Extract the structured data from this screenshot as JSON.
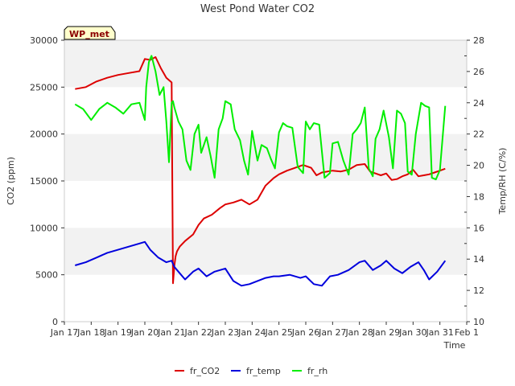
{
  "chart_data": {
    "type": "line",
    "title": "West Pond Water CO2",
    "xlabel": "Time",
    "ylabel": "CO2 (ppm)",
    "y2label": "Temp/RH (C/%)",
    "badge": "WP_met",
    "x_ticks": [
      "Jan 17",
      "Jan 18",
      "Jan 19",
      "Jan 20",
      "Jan 21",
      "Jan 22",
      "Jan 23",
      "Jan 24",
      "Jan 25",
      "Jan 26",
      "Jan 27",
      "Jan 28",
      "Jan 29",
      "Jan 30",
      "Jan 31",
      "Feb 1"
    ],
    "xlim": [
      17,
      32
    ],
    "ylim": [
      0,
      30000
    ],
    "y2lim": [
      10,
      28
    ],
    "y_ticks": [
      0,
      5000,
      10000,
      15000,
      20000,
      25000,
      30000
    ],
    "y2_ticks": [
      10,
      12,
      14,
      16,
      18,
      20,
      22,
      24,
      26,
      28
    ],
    "grid": "horizontal bands",
    "legend_position": "bottom-center",
    "series": [
      {
        "name": "fr_CO2",
        "axis": "left",
        "color": "#dd0000",
        "x": [
          17.4,
          17.8,
          18.2,
          18.6,
          19.0,
          19.4,
          19.8,
          20.0,
          20.2,
          20.4,
          20.6,
          20.8,
          21.0,
          21.05,
          21.1,
          21.15,
          21.2,
          21.3,
          21.5,
          21.8,
          22.0,
          22.2,
          22.5,
          22.8,
          23.0,
          23.3,
          23.6,
          23.9,
          24.2,
          24.5,
          24.8,
          25.0,
          25.3,
          25.6,
          25.9,
          26.2,
          26.4,
          26.6,
          27.0,
          27.3,
          27.6,
          27.9,
          28.2,
          28.4,
          28.6,
          28.8,
          29.0,
          29.2,
          29.4,
          29.6,
          29.8,
          30.0,
          30.2,
          30.4,
          30.6,
          30.8,
          31.0,
          31.2
        ],
        "values": [
          24800,
          25000,
          25600,
          26000,
          26300,
          26500,
          26700,
          28000,
          27900,
          28200,
          27000,
          26000,
          25500,
          4100,
          6000,
          7000,
          7500,
          8000,
          8600,
          9300,
          10300,
          11000,
          11400,
          12100,
          12500,
          12700,
          13000,
          12500,
          13000,
          14500,
          15300,
          15700,
          16100,
          16400,
          16700,
          16400,
          15600,
          15900,
          16100,
          16000,
          16200,
          16700,
          16800,
          16000,
          15800,
          15600,
          15800,
          15100,
          15200,
          15500,
          15700,
          16200,
          15500,
          15600,
          15700,
          15900,
          16100,
          16300
        ]
      },
      {
        "name": "fr_temp",
        "axis": "right",
        "color": "#0000dd",
        "x": [
          17.4,
          17.8,
          18.2,
          18.6,
          19.0,
          19.4,
          19.8,
          20.0,
          20.2,
          20.5,
          20.8,
          21.0,
          21.1,
          21.3,
          21.5,
          21.8,
          22.0,
          22.3,
          22.6,
          23.0,
          23.3,
          23.6,
          23.9,
          24.2,
          24.5,
          24.8,
          25.0,
          25.4,
          25.8,
          26.0,
          26.3,
          26.6,
          26.9,
          27.2,
          27.6,
          28.0,
          28.2,
          28.5,
          28.8,
          29.0,
          29.3,
          29.6,
          29.9,
          30.2,
          30.4,
          30.6,
          30.9,
          31.2
        ],
        "values": [
          13.6,
          13.8,
          14.1,
          14.4,
          14.6,
          14.8,
          15.0,
          15.1,
          14.6,
          14.1,
          13.8,
          13.9,
          13.5,
          13.1,
          12.7,
          13.2,
          13.4,
          12.9,
          13.2,
          13.4,
          12.6,
          12.3,
          12.4,
          12.6,
          12.8,
          12.9,
          12.9,
          13.0,
          12.8,
          12.9,
          12.4,
          12.3,
          12.9,
          13.0,
          13.3,
          13.8,
          13.9,
          13.3,
          13.6,
          13.9,
          13.4,
          13.1,
          13.5,
          13.8,
          13.3,
          12.7,
          13.2,
          13.9
        ]
      },
      {
        "name": "fr_rh",
        "axis": "right",
        "color": "#00ee00",
        "x": [
          17.4,
          17.7,
          18.0,
          18.3,
          18.6,
          18.9,
          19.2,
          19.5,
          19.8,
          20.0,
          20.05,
          20.15,
          20.25,
          20.4,
          20.55,
          20.7,
          20.8,
          20.9,
          21.0,
          21.05,
          21.1,
          21.25,
          21.4,
          21.55,
          21.7,
          21.85,
          22.0,
          22.1,
          22.3,
          22.45,
          22.6,
          22.75,
          22.9,
          23.0,
          23.2,
          23.35,
          23.55,
          23.7,
          23.85,
          24.0,
          24.2,
          24.35,
          24.55,
          24.7,
          24.85,
          25.0,
          25.15,
          25.3,
          25.5,
          25.7,
          25.9,
          26.0,
          26.15,
          26.3,
          26.5,
          26.7,
          26.9,
          27.0,
          27.2,
          27.4,
          27.6,
          27.75,
          27.9,
          28.05,
          28.2,
          28.35,
          28.5,
          28.6,
          28.75,
          28.9,
          29.1,
          29.25,
          29.4,
          29.55,
          29.7,
          29.8,
          29.95,
          30.1,
          30.3,
          30.45,
          30.6,
          30.7,
          30.85,
          31.0,
          31.2
        ],
        "values": [
          23.9,
          23.6,
          22.9,
          23.6,
          24.0,
          23.7,
          23.3,
          23.9,
          24.0,
          22.9,
          25.0,
          26.6,
          27.0,
          26.0,
          24.5,
          25.0,
          22.8,
          20.2,
          24.0,
          24.1,
          23.7,
          22.8,
          22.3,
          20.3,
          19.7,
          22.0,
          22.6,
          20.8,
          21.8,
          20.6,
          19.2,
          22.3,
          23.0,
          24.1,
          23.9,
          22.3,
          21.6,
          20.3,
          19.4,
          22.2,
          20.3,
          21.3,
          21.1,
          20.4,
          19.8,
          22.1,
          22.7,
          22.5,
          22.4,
          19.9,
          19.5,
          22.8,
          22.3,
          22.7,
          22.6,
          19.2,
          19.5,
          21.4,
          21.5,
          20.3,
          19.4,
          22.0,
          22.3,
          22.7,
          23.7,
          19.8,
          19.3,
          21.7,
          22.3,
          23.5,
          21.8,
          19.8,
          23.5,
          23.3,
          22.7,
          19.6,
          19.4,
          22.0,
          24.0,
          23.8,
          23.7,
          19.2,
          19.1,
          19.7,
          23.8
        ]
      }
    ]
  }
}
